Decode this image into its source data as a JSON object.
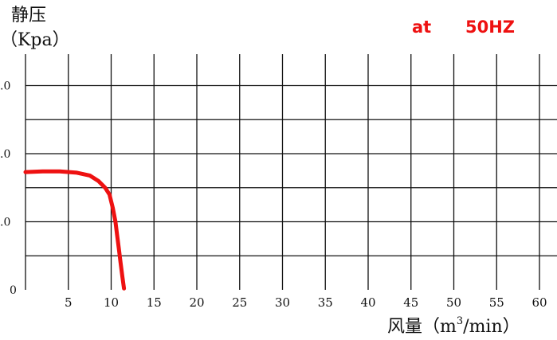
{
  "chart_data": {
    "type": "line",
    "ylabel_line1": "静压",
    "ylabel_line2": "（Kpa）",
    "xlabel_prefix": "风量（m",
    "xlabel_sup": "3",
    "xlabel_suffix": "/min）",
    "annotation_at": "at",
    "annotation_freq": "50HZ",
    "x_ticks": [
      "5",
      "10",
      "15",
      "20",
      "25",
      "30",
      "35",
      "40",
      "45",
      "50",
      "55",
      "60"
    ],
    "y_ticks": [
      "0",
      ".0",
      ".0",
      ".0"
    ],
    "xlim": [
      0,
      62
    ],
    "ylim": [
      0,
      30
    ],
    "grid": true,
    "series": [
      {
        "x": [
          0,
          2,
          4,
          6,
          7.5,
          8.5,
          9.3,
          9.8,
          10.2,
          10.5,
          10.7,
          10.9,
          11.1,
          11.3,
          11.5
        ],
        "y": [
          17.3,
          17.4,
          17.4,
          17.2,
          16.8,
          16.0,
          15.0,
          14.0,
          12.0,
          10.0,
          8.0,
          6.0,
          4.0,
          2.0,
          0.2
        ]
      }
    ],
    "colors": {
      "line": "#ee1111",
      "grid": "#111111",
      "annotation": "#ee1111"
    }
  }
}
